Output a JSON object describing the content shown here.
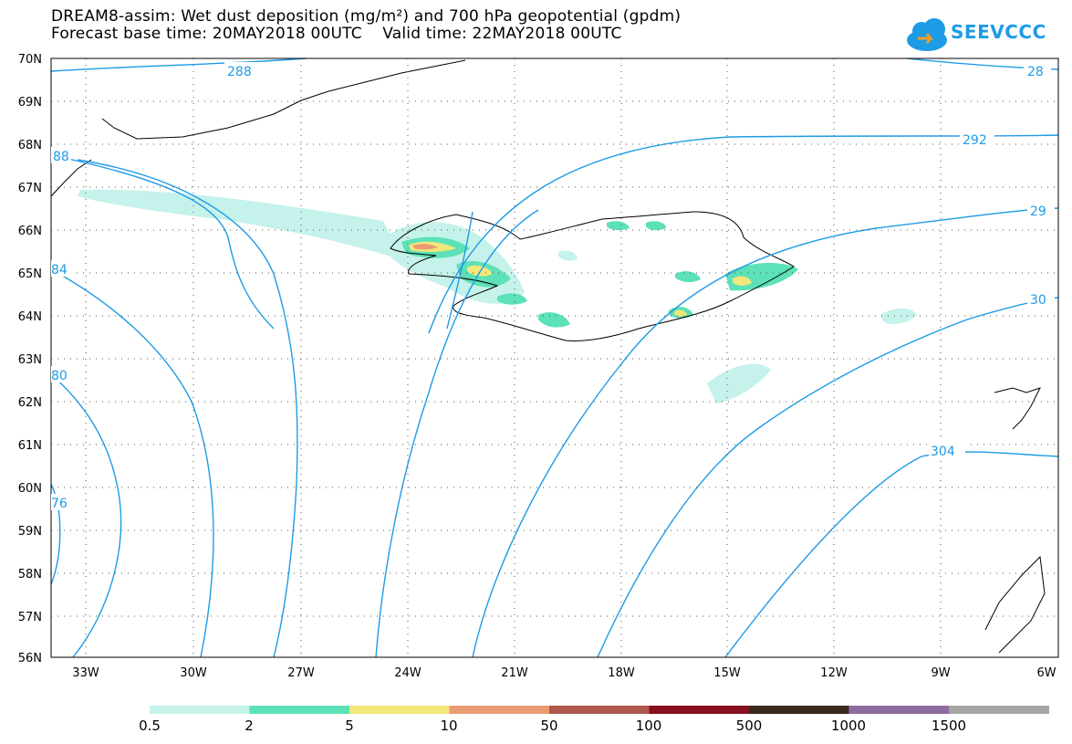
{
  "title_line1": "DREAM8-assim: Wet dust deposition (mg/m²) and 700 hPa geopotential (gpdm)",
  "title_line2": "Forecast base time: 20MAY2018 00UTC    Valid time: 22MAY2018 00UTC",
  "logo": {
    "text": "SEEVCCC",
    "icon": "cloud-arrow-icon"
  },
  "map": {
    "lat_labels": [
      "70N",
      "69N",
      "68N",
      "67N",
      "66N",
      "65N",
      "64N",
      "63N",
      "62N",
      "61N",
      "60N",
      "59N",
      "58N",
      "57N",
      "56N"
    ],
    "lon_labels": [
      "33W",
      "30W",
      "27W",
      "24W",
      "21W",
      "18W",
      "15W",
      "12W",
      "9W",
      "6W"
    ],
    "contour_labels": [
      "288",
      "28",
      "292",
      "29",
      "88",
      "84",
      "80",
      "30",
      "76",
      "304"
    ],
    "contour_color": "#1e9be6"
  },
  "legend": {
    "labels": [
      "0.5",
      "2",
      "5",
      "10",
      "50",
      "100",
      "500",
      "1000",
      "1500"
    ],
    "colors": [
      "#c5f2ea",
      "#5ce1b8",
      "#f2e77a",
      "#ea9b72",
      "#b0584e",
      "#86101e",
      "#3a2a1e",
      "#8f6ca0",
      "#a6a6a6"
    ]
  }
}
